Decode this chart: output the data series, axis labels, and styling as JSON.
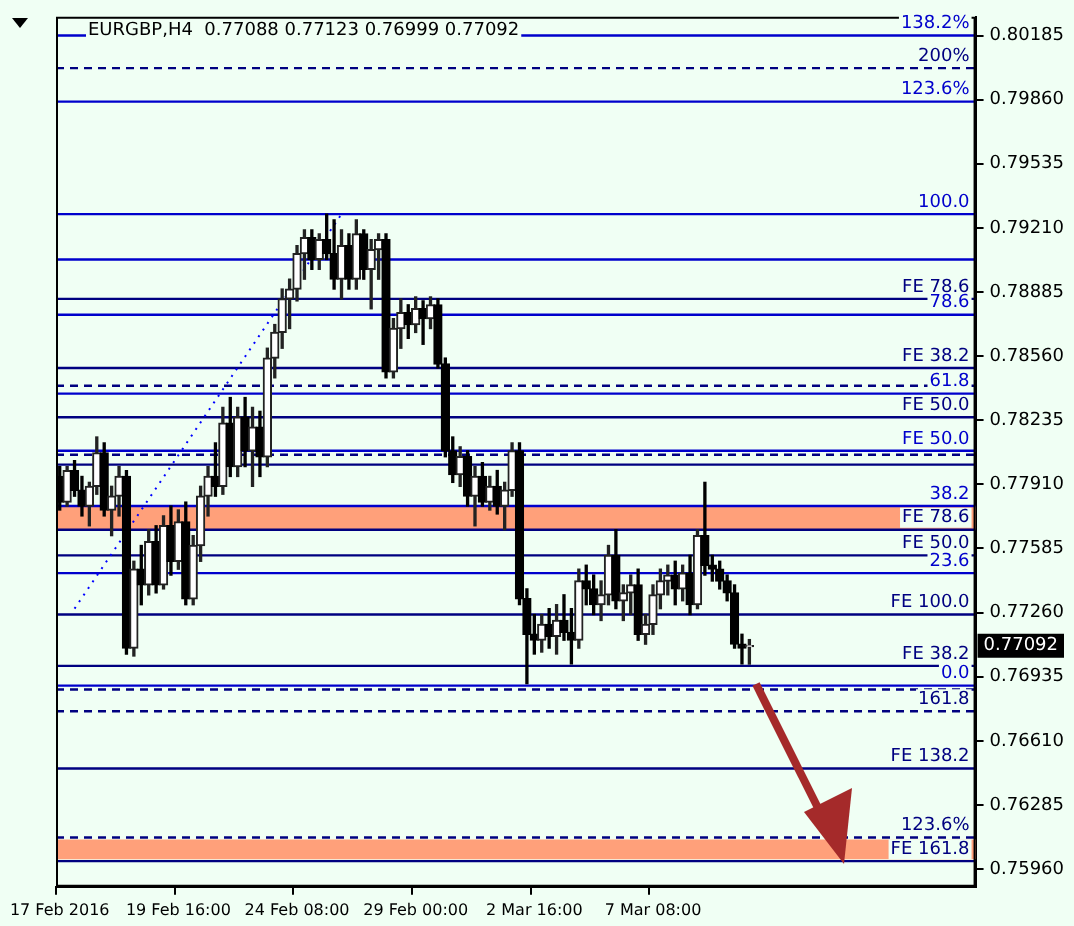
{
  "chart_data": {
    "type": "candlestick",
    "title": "EURGBP,H4  0.77088 0.77123 0.76999 0.77092",
    "categories": [
      "17 Feb 2016",
      null,
      null,
      null,
      null,
      null,
      null,
      null,
      null,
      null,
      null,
      null,
      null,
      null,
      null,
      null,
      "19 Feb 16:00",
      null,
      null,
      null,
      null,
      null,
      null,
      null,
      null,
      null,
      null,
      null,
      null,
      null,
      null,
      null,
      "24 Feb 08:00",
      null,
      null,
      null,
      null,
      null,
      null,
      null,
      null,
      null,
      null,
      null,
      null,
      null,
      null,
      null,
      "29 Feb 00:00",
      null,
      null,
      null,
      null,
      null,
      null,
      null,
      null,
      null,
      null,
      null,
      null,
      null,
      null,
      null,
      "2 Mar 16:00",
      null,
      null,
      null,
      null,
      null,
      null,
      null,
      null,
      null,
      null,
      null,
      null,
      null,
      null,
      null,
      "7 Mar 08:00",
      null,
      null,
      null,
      null,
      null,
      null,
      null,
      null,
      null,
      null,
      null,
      null,
      null,
      null,
      null,
      null,
      null,
      null,
      null,
      null,
      null,
      null,
      null,
      null,
      null,
      null,
      null,
      null,
      null,
      null,
      null,
      null,
      null,
      null,
      null,
      null,
      null,
      null,
      null,
      null,
      null,
      null,
      null
    ],
    "ohlc": [
      [
        0.7795,
        0.78,
        0.7778,
        0.7782
      ],
      [
        0.7782,
        0.78,
        0.778,
        0.7798
      ],
      [
        0.7798,
        0.7803,
        0.7785,
        0.7788
      ],
      [
        0.7788,
        0.7795,
        0.7775,
        0.778
      ],
      [
        0.778,
        0.7792,
        0.777,
        0.779
      ],
      [
        0.779,
        0.7815,
        0.7786,
        0.7807
      ],
      [
        0.7807,
        0.7812,
        0.7775,
        0.7778
      ],
      [
        0.7778,
        0.779,
        0.7765,
        0.7785
      ],
      [
        0.7785,
        0.78,
        0.7775,
        0.7795
      ],
      [
        0.7795,
        0.7798,
        0.7705,
        0.7708
      ],
      [
        0.7708,
        0.7752,
        0.7704,
        0.7748
      ],
      [
        0.7748,
        0.776,
        0.773,
        0.774
      ],
      [
        0.774,
        0.7768,
        0.7735,
        0.7762
      ],
      [
        0.7762,
        0.777,
        0.7736,
        0.774
      ],
      [
        0.774,
        0.7775,
        0.7738,
        0.777
      ],
      [
        0.777,
        0.778,
        0.7745,
        0.7752
      ],
      [
        0.7752,
        0.7778,
        0.7748,
        0.7772
      ],
      [
        0.7772,
        0.7782,
        0.773,
        0.7733
      ],
      [
        0.7733,
        0.7765,
        0.773,
        0.776
      ],
      [
        0.776,
        0.779,
        0.7752,
        0.7785
      ],
      [
        0.7785,
        0.78,
        0.7775,
        0.7795
      ],
      [
        0.7795,
        0.7812,
        0.7785,
        0.779
      ],
      [
        0.779,
        0.783,
        0.7786,
        0.7822
      ],
      [
        0.7822,
        0.7835,
        0.7795,
        0.78
      ],
      [
        0.78,
        0.783,
        0.7795,
        0.7825
      ],
      [
        0.7825,
        0.7835,
        0.78,
        0.7808
      ],
      [
        0.7808,
        0.783,
        0.779,
        0.782
      ],
      [
        0.782,
        0.7828,
        0.7795,
        0.7805
      ],
      [
        0.7805,
        0.786,
        0.78,
        0.7855
      ],
      [
        0.7855,
        0.7872,
        0.7845,
        0.7868
      ],
      [
        0.7868,
        0.789,
        0.786,
        0.7885
      ],
      [
        0.7885,
        0.7895,
        0.787,
        0.789
      ],
      [
        0.789,
        0.7912,
        0.7884,
        0.7908
      ],
      [
        0.7908,
        0.792,
        0.7895,
        0.7916
      ],
      [
        0.7916,
        0.792,
        0.79,
        0.7905
      ],
      [
        0.7905,
        0.7918,
        0.79,
        0.7915
      ],
      [
        0.7915,
        0.7928,
        0.7905,
        0.7908
      ],
      [
        0.7908,
        0.7925,
        0.789,
        0.7895
      ],
      [
        0.7895,
        0.792,
        0.7885,
        0.7912
      ],
      [
        0.7912,
        0.7918,
        0.789,
        0.7895
      ],
      [
        0.7895,
        0.7925,
        0.789,
        0.7918
      ],
      [
        0.7918,
        0.792,
        0.7895,
        0.79
      ],
      [
        0.79,
        0.7915,
        0.788,
        0.791
      ],
      [
        0.791,
        0.7918,
        0.7895,
        0.7915
      ],
      [
        0.7915,
        0.7918,
        0.7845,
        0.7848
      ],
      [
        0.7848,
        0.7875,
        0.7845,
        0.787
      ],
      [
        0.787,
        0.7885,
        0.786,
        0.7878
      ],
      [
        0.7878,
        0.7882,
        0.7865,
        0.7872
      ],
      [
        0.7872,
        0.7886,
        0.7868,
        0.788
      ],
      [
        0.788,
        0.7884,
        0.7862,
        0.7875
      ],
      [
        0.7875,
        0.7886,
        0.787,
        0.7882
      ],
      [
        0.7882,
        0.7885,
        0.785,
        0.7852
      ],
      [
        0.7852,
        0.7855,
        0.7805,
        0.7808
      ],
      [
        0.7808,
        0.7815,
        0.7792,
        0.7796
      ],
      [
        0.7796,
        0.781,
        0.779,
        0.7805
      ],
      [
        0.7805,
        0.7808,
        0.778,
        0.7785
      ],
      [
        0.7785,
        0.78,
        0.777,
        0.7795
      ],
      [
        0.7795,
        0.7802,
        0.778,
        0.7782
      ],
      [
        0.7782,
        0.7795,
        0.7778,
        0.779
      ],
      [
        0.779,
        0.7798,
        0.7776,
        0.778
      ],
      [
        0.778,
        0.7792,
        0.7768,
        0.7788
      ],
      [
        0.7788,
        0.7812,
        0.7785,
        0.7808
      ],
      [
        0.7808,
        0.7812,
        0.773,
        0.7733
      ],
      [
        0.7733,
        0.7738,
        0.769,
        0.7715
      ],
      [
        0.7715,
        0.7725,
        0.7705,
        0.7712
      ],
      [
        0.7712,
        0.7725,
        0.7706,
        0.772
      ],
      [
        0.772,
        0.7728,
        0.7708,
        0.7714
      ],
      [
        0.7714,
        0.773,
        0.7705,
        0.7722
      ],
      [
        0.7722,
        0.7735,
        0.7712,
        0.7716
      ],
      [
        0.7716,
        0.7728,
        0.77,
        0.7712
      ],
      [
        0.7712,
        0.7748,
        0.7708,
        0.7742
      ],
      [
        0.7742,
        0.775,
        0.773,
        0.7738
      ],
      [
        0.7738,
        0.7745,
        0.7725,
        0.773
      ],
      [
        0.773,
        0.7742,
        0.7722,
        0.7735
      ],
      [
        0.7735,
        0.776,
        0.773,
        0.7755
      ],
      [
        0.7755,
        0.7768,
        0.7728,
        0.7732
      ],
      [
        0.7732,
        0.774,
        0.7722,
        0.7736
      ],
      [
        0.7736,
        0.7745,
        0.7725,
        0.774
      ],
      [
        0.774,
        0.7748,
        0.7712,
        0.7715
      ],
      [
        0.7715,
        0.7725,
        0.771,
        0.772
      ],
      [
        0.772,
        0.774,
        0.7715,
        0.7735
      ],
      [
        0.7735,
        0.7748,
        0.7728,
        0.7742
      ],
      [
        0.7742,
        0.775,
        0.7735,
        0.7745
      ],
      [
        0.7745,
        0.7752,
        0.773,
        0.7738
      ],
      [
        0.7738,
        0.775,
        0.7732,
        0.7746
      ],
      [
        0.7746,
        0.7755,
        0.7725,
        0.773
      ],
      [
        0.773,
        0.7768,
        0.7728,
        0.7765
      ],
      [
        0.7765,
        0.7792,
        0.7745,
        0.775
      ],
      [
        0.775,
        0.7755,
        0.7742,
        0.7748
      ],
      [
        0.7748,
        0.7752,
        0.7738,
        0.7742
      ],
      [
        0.7742,
        0.7745,
        0.7732,
        0.7736
      ],
      [
        0.7736,
        0.774,
        0.7708,
        0.771
      ],
      [
        0.771,
        0.7715,
        0.77,
        0.7708
      ],
      [
        0.77088,
        0.77123,
        0.76999,
        0.77092
      ],
      null,
      null,
      null,
      null,
      null,
      null,
      null,
      null,
      null,
      null,
      null,
      null,
      null,
      null,
      null,
      null,
      null,
      null,
      null,
      null,
      null,
      null,
      null,
      null,
      null,
      null,
      null,
      null,
      null,
      null
    ],
    "series": [
      {
        "type": "line",
        "line_style": "dotted",
        "color": "#0000ff",
        "values": [
          null,
          null,
          0.7728,
          null,
          null,
          null,
          null,
          null,
          null,
          null,
          null,
          null,
          null,
          null,
          null,
          null,
          null,
          null,
          null,
          null,
          null,
          null,
          null,
          null,
          null,
          null,
          null,
          null,
          null,
          null,
          null,
          null,
          null,
          null,
          null,
          null,
          null,
          null,
          0.7928,
          null,
          null,
          null,
          null,
          null,
          null,
          null,
          null,
          null,
          null,
          null,
          null,
          null,
          null,
          null,
          null,
          null,
          null,
          null,
          null,
          null,
          null,
          null,
          null,
          null,
          null,
          null,
          null,
          null,
          null,
          null,
          null,
          null,
          null,
          null,
          null,
          null,
          null,
          null,
          null,
          null,
          null,
          null,
          null,
          null,
          null,
          null,
          null,
          null,
          null,
          null,
          null,
          null,
          null,
          null,
          null,
          null,
          null,
          null,
          null,
          null,
          null,
          null,
          null,
          null,
          null,
          null,
          null,
          null,
          null,
          null,
          null,
          null,
          null,
          null,
          null,
          null,
          null,
          null,
          null,
          null,
          null,
          null,
          null,
          null
        ]
      }
    ],
    "ylim": [
      0.7587,
      0.8028
    ],
    "yticks": [
      {
        "value": 0.7596,
        "label": "0.75960"
      },
      0.76285,
      {
        "value": 0.7661,
        "label": "0.76610"
      },
      0.76935,
      {
        "value": 0.7726,
        "label": "0.77260"
      },
      0.77585,
      {
        "value": 0.7791,
        "label": "0.77910"
      },
      0.78235,
      {
        "value": 0.7856,
        "label": "0.78560"
      },
      0.78885,
      {
        "value": 0.7921,
        "label": "0.79210"
      },
      0.79535,
      {
        "value": 0.7986,
        "label": "0.79860"
      },
      0.80185
    ],
    "ref_lines": [
      {
        "axis": "y",
        "value": 0.80185,
        "color": "#0000cc",
        "line_style": "solid"
      },
      {
        "axis": "y",
        "value": 0.8002,
        "color": "#000080",
        "line_style": "dashed"
      },
      {
        "axis": "y",
        "value": 0.7985,
        "color": "#0000cc",
        "line_style": "solid"
      },
      {
        "axis": "y",
        "value": 0.7928,
        "color": "#0000cc",
        "line_style": "solid"
      },
      {
        "axis": "y",
        "value": 0.7905,
        "color": "#0000cc",
        "line_style": "solid"
      },
      {
        "axis": "y",
        "value": 0.7885,
        "color": "#000080",
        "line_style": "solid"
      },
      {
        "axis": "y",
        "value": 0.7877,
        "color": "#0000cc",
        "line_style": "solid"
      },
      {
        "axis": "y",
        "value": 0.785,
        "color": "#000080",
        "line_style": "solid"
      },
      {
        "axis": "y",
        "value": 0.7841,
        "color": "#000080",
        "line_style": "dashed"
      },
      {
        "axis": "y",
        "value": 0.7837,
        "color": "#0000cc",
        "line_style": "solid"
      },
      {
        "axis": "y",
        "value": 0.7825,
        "color": "#000080",
        "line_style": "solid"
      },
      {
        "axis": "y",
        "value": 0.7808,
        "color": "#0000cc",
        "line_style": "solid"
      },
      {
        "axis": "y",
        "value": 0.7806,
        "color": "#000080",
        "line_style": "dashed"
      },
      {
        "axis": "y",
        "value": 0.7801,
        "color": "#000080",
        "line_style": "solid"
      },
      {
        "axis": "y",
        "value": 0.778,
        "color": "#0000cc",
        "line_style": "solid"
      },
      {
        "axis": "y",
        "value": 0.7768,
        "color": "#000080",
        "line_style": "solid"
      },
      {
        "axis": "y",
        "value": 0.7755,
        "color": "#000080",
        "line_style": "solid"
      },
      {
        "axis": "y",
        "value": 0.7746,
        "color": "#0000cc",
        "line_style": "solid"
      },
      {
        "axis": "y",
        "value": 0.7725,
        "color": "#000080",
        "line_style": "solid"
      },
      {
        "axis": "y",
        "value": 0.7699,
        "color": "#000080",
        "line_style": "solid"
      },
      {
        "axis": "y",
        "value": 0.7689,
        "color": "#0000cc",
        "line_style": "solid"
      },
      {
        "axis": "y",
        "value": 0.7687,
        "color": "#000080",
        "line_style": "dashed"
      },
      {
        "axis": "y",
        "value": 0.7676,
        "color": "#000080",
        "line_style": "dashed"
      },
      {
        "axis": "y",
        "value": 0.7647,
        "color": "#000080",
        "line_style": "solid"
      },
      {
        "axis": "y",
        "value": 0.7612,
        "color": "#000080",
        "line_style": "dashed"
      },
      {
        "axis": "y",
        "value": 0.76,
        "color": "#000080",
        "line_style": "solid"
      }
    ],
    "bands": [
      {
        "axis": "y",
        "from": 0.7768,
        "to": 0.778,
        "color": "#ffa07a"
      },
      {
        "axis": "y",
        "from": 0.7601,
        "to": 0.7611,
        "color": "#ffa07a"
      }
    ],
    "annotations": [
      "0.77092",
      {
        "text": "138.2%",
        "y": 0.80185
      },
      {
        "text": "200%",
        "y": 0.8002
      },
      {
        "text": "123.6%",
        "y": 0.7985
      },
      {
        "text": "100.0",
        "y": 0.7928
      },
      {
        "text": "FE 78.6",
        "y": 0.7885
      },
      {
        "text": "78.6",
        "y": 0.7877
      },
      {
        "text": "FE 38.2",
        "y": 0.785
      },
      {
        "text": "61.8",
        "y": 0.7837
      },
      {
        "text": "FE 50.0",
        "y": 0.7825
      },
      {
        "text": "FE 50.0",
        "y": 0.7808
      },
      {
        "text": "38.2",
        "y": 0.778
      },
      {
        "text": "FE 78.6",
        "y": 0.7768
      },
      {
        "text": "FE 50.0",
        "y": 0.7755
      },
      {
        "text": "23.6",
        "y": 0.7746
      },
      {
        "text": "FE 100.0",
        "y": 0.7725
      },
      {
        "text": "FE 38.2",
        "y": 0.7699
      },
      {
        "text": "0.0",
        "y": 0.7689
      },
      {
        "text": "161.8",
        "y": 0.7676
      },
      {
        "text": "FE 138.2",
        "y": 0.7647
      },
      {
        "text": "123.6%",
        "y": 0.7612
      },
      {
        "text": "FE 161.8",
        "y": 0.76
      }
    ]
  }
}
